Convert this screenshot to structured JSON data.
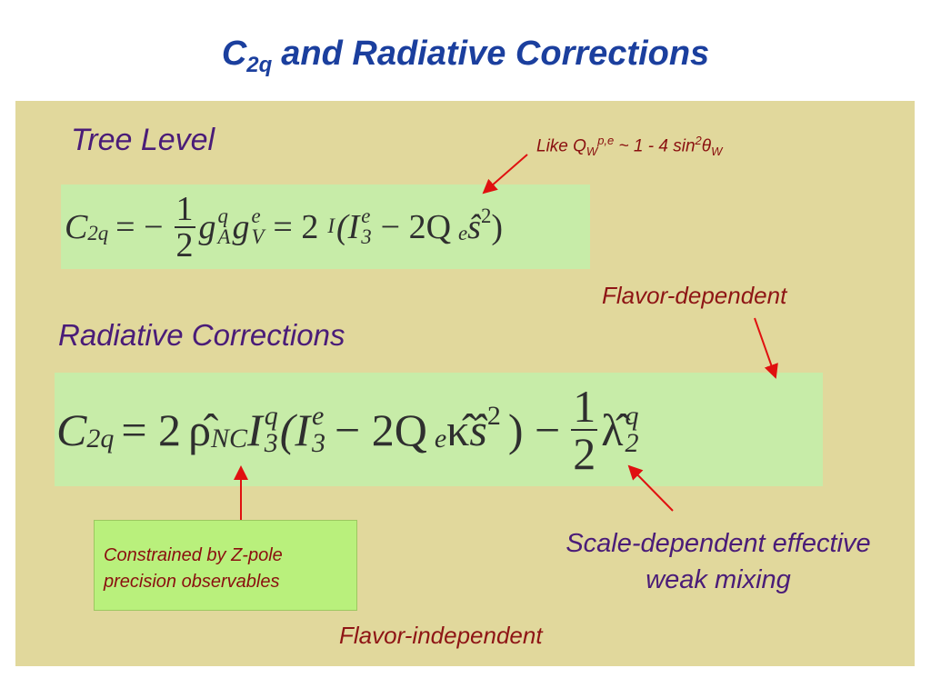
{
  "header": {
    "symbol": "C",
    "subscript": "2q",
    "text": "and Radiative Corrections"
  },
  "tree_level": {
    "label": "Tree Level",
    "note": [
      "Like Q",
      "W",
      "p,e",
      " ~ 1 - 4 sin",
      "2",
      "θ",
      "W"
    ],
    "equation": [
      "C",
      "2q",
      "= −",
      "1",
      "2",
      "g",
      "q",
      "A",
      "g",
      "e",
      "V",
      "= 2",
      "I",
      "",
      "(I",
      "e",
      "3",
      "− 2Q",
      "e",
      "ŝ",
      "2",
      ")"
    ]
  },
  "radiative": {
    "label": "Radiative Corrections",
    "equation": [
      "C",
      "2q",
      "= 2",
      "ρ̂",
      "NC",
      "I",
      "q",
      "3",
      "(I",
      "e",
      "3",
      "− 2Q",
      "e",
      "κ̂ ",
      "ŝ",
      "2",
      ") −",
      "1",
      "2",
      "λ̂",
      "q",
      "2"
    ]
  },
  "labels": {
    "flavor_dependent": "Flavor-dependent",
    "constrained": [
      "Constrained by Z-pole",
      "precision observables"
    ],
    "scale_dependent": [
      "Scale-dependent effective",
      "weak mixing"
    ],
    "flavor_independent": "Flavor-independent"
  }
}
